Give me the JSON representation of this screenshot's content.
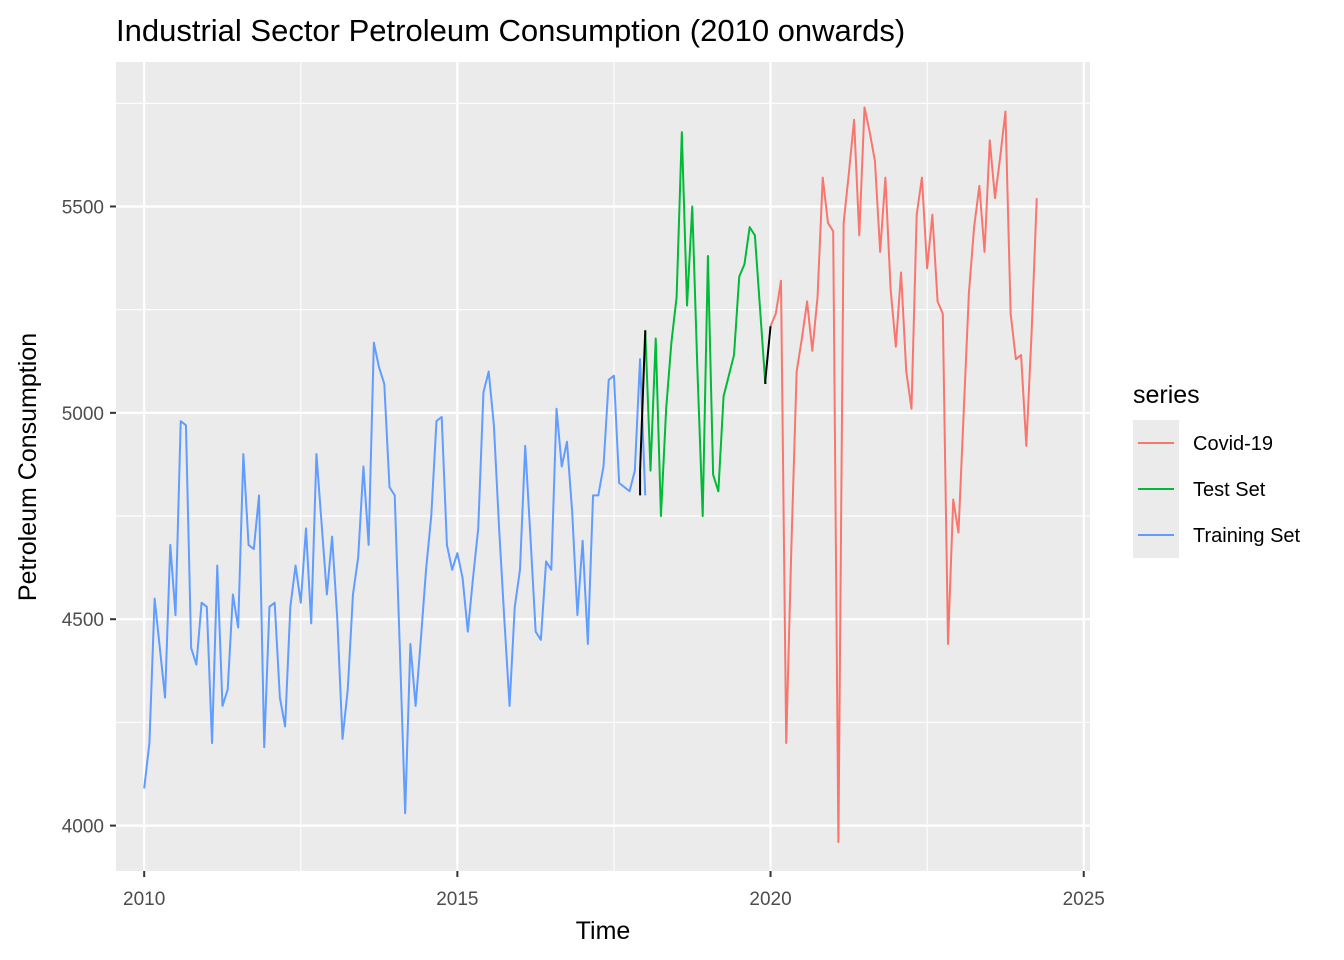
{
  "chart_data": {
    "type": "line",
    "title": "Industrial Sector Petroleum Consumption (2010 onwards)",
    "xlabel": "Time",
    "ylabel": "Petroleum Consumption",
    "xlim": [
      2009.55,
      2025.1
    ],
    "ylim": [
      3890,
      5850
    ],
    "x_ticks": [
      2010,
      2015,
      2020,
      2025
    ],
    "x_tick_labels": [
      "2010",
      "2015",
      "2020",
      "2025"
    ],
    "x_minor_ticks": [
      2012.5,
      2017.5,
      2022.5
    ],
    "y_ticks": [
      4000,
      4500,
      5000,
      5500
    ],
    "y_tick_labels": [
      "4000",
      "4500",
      "5000",
      "5500"
    ],
    "y_minor_ticks": [
      4250,
      4750,
      5250,
      5750
    ],
    "grid": true,
    "legend": {
      "title": "series",
      "position": "right",
      "entries": [
        "Covid-19",
        "Test Set",
        "Training Set"
      ]
    },
    "series": [
      {
        "name": "Training Set",
        "color": "#619CFF",
        "x_start": 2010.0,
        "step": 0.08333,
        "values": [
          4090,
          4200,
          4550,
          4430,
          4310,
          4680,
          4510,
          4980,
          4970,
          4430,
          4390,
          4540,
          4530,
          4200,
          4630,
          4290,
          4330,
          4560,
          4480,
          4900,
          4680,
          4670,
          4800,
          4190,
          4530,
          4540,
          4310,
          4240,
          4530,
          4630,
          4540,
          4720,
          4490,
          4900,
          4730,
          4560,
          4700,
          4500,
          4210,
          4330,
          4560,
          4650,
          4870,
          4680,
          5170,
          5110,
          5070,
          4820,
          4800,
          4420,
          4030,
          4440,
          4290,
          4450,
          4620,
          4750,
          4980,
          4990,
          4680,
          4620,
          4660,
          4600,
          4470,
          4600,
          4720,
          5050,
          5100,
          4970,
          4720,
          4500,
          4290,
          4530,
          4620,
          4920,
          4700,
          4470,
          4450,
          4640,
          4620,
          5010,
          4870,
          4930,
          4760,
          4510,
          4690,
          4440,
          4800,
          4800,
          4870,
          5080,
          5090,
          4830,
          4820,
          4810,
          4860,
          5130,
          4800
        ]
      },
      {
        "name": "Test Set",
        "color": "#00BA38",
        "x_start": 2018.0,
        "step": 0.08333,
        "values": [
          5200,
          4860,
          5180,
          4750,
          5010,
          5170,
          5280,
          5680,
          5260,
          5500,
          5100,
          4750,
          5380,
          4850,
          4810,
          5040,
          5090,
          5140,
          5330,
          5360,
          5450,
          5430,
          5250,
          5070
        ]
      },
      {
        "name": "Covid-19",
        "color": "#F8766D",
        "x_start": 2020.0,
        "step": 0.08333,
        "values": [
          5210,
          5240,
          5320,
          4200,
          4680,
          5100,
          5180,
          5270,
          5150,
          5280,
          5570,
          5460,
          5440,
          3960,
          5460,
          5580,
          5710,
          5430,
          5740,
          5680,
          5610,
          5390,
          5570,
          5300,
          5160,
          5340,
          5100,
          5010,
          5480,
          5570,
          5350,
          5480,
          5270,
          5240,
          4440,
          4790,
          4710,
          5000,
          5290,
          5450,
          5550,
          5390,
          5660,
          5520,
          5620,
          5730,
          5240,
          5130,
          5140,
          4920,
          5190,
          5520
        ]
      },
      {
        "name": "",
        "color": "#000000",
        "segments": [
          [
            [
              2017.917,
              4800
            ],
            [
              2017.917,
              4860
            ],
            [
              2018.0,
              5200
            ]
          ],
          [
            [
              2019.917,
              5070
            ],
            [
              2019.917,
              5080
            ],
            [
              2020.0,
              5210
            ]
          ]
        ]
      }
    ]
  }
}
